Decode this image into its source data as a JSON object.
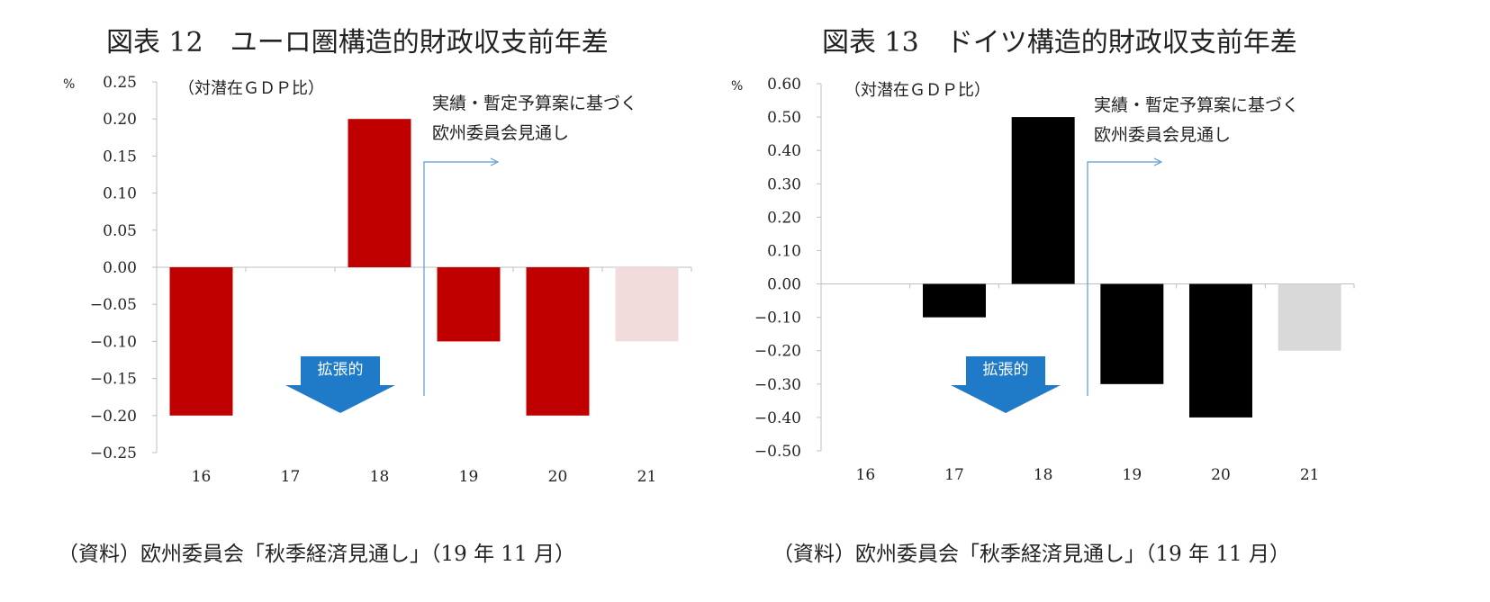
{
  "chart_data": [
    {
      "type": "bar",
      "title": "図表 12　ユーロ圏構造的財政収支前年差",
      "unit_label": "%",
      "note": "（対潜在ＧＤＰ比）",
      "annotation_lines": [
        "実績・暫定予算案に基づく",
        "欧州委員会見通し"
      ],
      "arrow_label": "拡張的",
      "source": "（資料）欧州委員会「秋季経済見通し」（19 年 11 月）",
      "categories": [
        "16",
        "17",
        "18",
        "19",
        "20",
        "21"
      ],
      "values": [
        -0.2,
        0.0,
        0.2,
        -0.1,
        -0.2,
        -0.1
      ],
      "colors": [
        "#c00000",
        "#c00000",
        "#c00000",
        "#c00000",
        "#c00000",
        "#f2dcdb"
      ],
      "ylim": [
        -0.25,
        0.25
      ],
      "yticks": [
        "0.25",
        "0.20",
        "0.15",
        "0.10",
        "0.05",
        "0.00",
        "−0.05",
        "−0.10",
        "−0.15",
        "−0.20",
        "−0.25"
      ],
      "ytick_values": [
        0.25,
        0.2,
        0.15,
        0.1,
        0.05,
        0.0,
        -0.05,
        -0.1,
        -0.15,
        -0.2,
        -0.25
      ],
      "divider_after_category": "18",
      "grid": false
    },
    {
      "type": "bar",
      "title": "図表 13　ドイツ構造的財政収支前年差",
      "unit_label": "%",
      "note": "（対潜在ＧＤＰ比）",
      "annotation_lines": [
        "実績・暫定予算案に基づく",
        "欧州委員会見通し"
      ],
      "arrow_label": "拡張的",
      "source": "（資料）欧州委員会「秋季経済見通し」（19 年 11 月）",
      "categories": [
        "16",
        "17",
        "18",
        "19",
        "20",
        "21"
      ],
      "values": [
        0.0,
        -0.1,
        0.5,
        -0.3,
        -0.4,
        -0.2
      ],
      "colors": [
        "#000000",
        "#000000",
        "#000000",
        "#000000",
        "#000000",
        "#d9d9d9"
      ],
      "ylim": [
        -0.5,
        0.6
      ],
      "yticks": [
        "0.60",
        "0.50",
        "0.40",
        "0.30",
        "0.20",
        "0.10",
        "0.00",
        "−0.10",
        "−0.20",
        "−0.30",
        "−0.40",
        "−0.50"
      ],
      "ytick_values": [
        0.6,
        0.5,
        0.4,
        0.3,
        0.2,
        0.1,
        0.0,
        -0.1,
        -0.2,
        -0.3,
        -0.4,
        -0.5
      ],
      "divider_after_category": "18",
      "grid": false
    }
  ],
  "colors": {
    "arrow_fill": "#1f7ac8",
    "divider_line": "#5b9bd5",
    "axis_line": "#bfbfbf"
  }
}
